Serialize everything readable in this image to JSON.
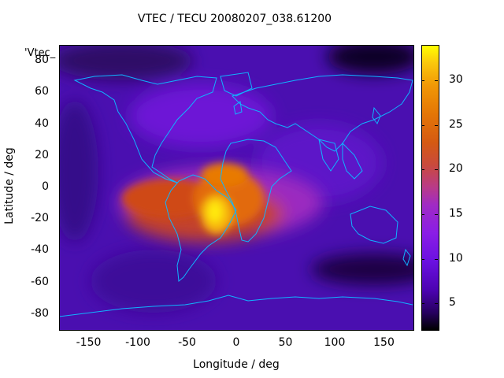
{
  "chart_data": {
    "type": "heatmap",
    "title": "VTEC / TECU 20080207_038.61200",
    "key_label": "'Vtec_",
    "xlabel": "Longitude / deg",
    "ylabel": "Latitude / deg",
    "xlim": [
      -180,
      180
    ],
    "ylim": [
      -90,
      90
    ],
    "xticks": [
      "-150",
      "-100",
      "-50",
      "0",
      "50",
      "100",
      "150"
    ],
    "yticks": [
      "80",
      "60",
      "40",
      "20",
      "0",
      "-20",
      "-40",
      "-60",
      "-80"
    ],
    "colorbar": {
      "range": [
        2,
        34
      ],
      "ticks": [
        "5",
        "10",
        "15",
        "20",
        "25",
        "30"
      ],
      "colors": [
        "#000000",
        "#4c03b1",
        "#8a1de6",
        "#c94a3d",
        "#e47606",
        "#ffff00"
      ]
    },
    "features": {
      "equatorial_anomaly_peak_lon": -25,
      "equatorial_anomaly_peak_lat": -15,
      "peak_value": 34,
      "background_value": 9
    }
  }
}
